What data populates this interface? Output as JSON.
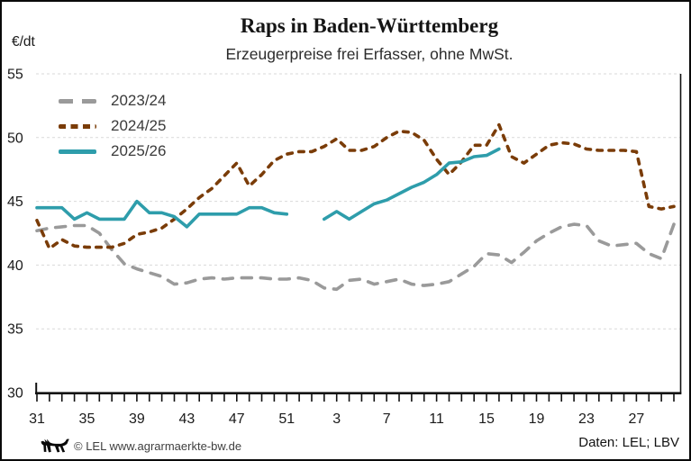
{
  "header": {
    "title": "Raps in Baden-Württemberg",
    "subtitle": "Erzeugerpreise frei Erfasser, ohne MwSt."
  },
  "footer": {
    "credit": "© LEL www.agrarmaerkte-bw.de",
    "source": "Daten: LEL; LBV",
    "logo": "baden-wuerttemberg-lion"
  },
  "chart_data": {
    "type": "line",
    "title": "Raps in Baden-Württemberg",
    "subtitle": "Erzeugerpreise frei Erfasser, ohne MwSt.",
    "ylabel": "€/dt",
    "xlabel": "",
    "ylim": [
      30,
      55
    ],
    "yticks": [
      30,
      35,
      40,
      45,
      50,
      55
    ],
    "grid": "horizontal-dashed",
    "legend_position": "top-left-inside",
    "x_unit": "Kalenderwoche",
    "x_weeks": [
      31,
      32,
      33,
      34,
      35,
      36,
      37,
      38,
      39,
      40,
      41,
      42,
      43,
      44,
      45,
      46,
      47,
      48,
      49,
      50,
      51,
      52,
      1,
      2,
      3,
      4,
      5,
      6,
      7,
      8,
      9,
      10,
      11,
      12,
      13,
      14,
      15,
      16,
      17,
      18,
      19,
      20,
      21,
      22,
      23,
      24,
      25,
      26,
      27,
      28,
      29,
      30
    ],
    "xtick_label_every": 4,
    "xtick_labels_shown": [
      31,
      35,
      39,
      43,
      47,
      51,
      3,
      7,
      11,
      15,
      19,
      23,
      27
    ],
    "series": [
      {
        "name": "2023/24",
        "color": "#9a9a9a",
        "dash": "long",
        "values": [
          42.7,
          42.9,
          43.0,
          43.1,
          43.1,
          42.5,
          41.2,
          40.1,
          39.7,
          39.4,
          39.1,
          38.5,
          38.6,
          38.9,
          39.0,
          38.9,
          39.0,
          39.0,
          39.0,
          38.9,
          38.9,
          39.0,
          38.8,
          38.2,
          38.1,
          38.8,
          38.9,
          38.5,
          38.7,
          38.9,
          38.5,
          38.4,
          38.5,
          38.7,
          39.3,
          39.9,
          40.9,
          40.8,
          40.2,
          41.0,
          41.9,
          42.5,
          43.0,
          43.2,
          43.1,
          41.9,
          41.5,
          41.6,
          41.7,
          40.9,
          40.5,
          43.2
        ]
      },
      {
        "name": "2024/25",
        "color": "#7a3c08",
        "dash": "short",
        "values": [
          43.5,
          41.3,
          42.0,
          41.5,
          41.4,
          41.4,
          41.4,
          41.7,
          42.4,
          42.6,
          42.9,
          43.6,
          44.4,
          45.3,
          46.0,
          47.0,
          48.0,
          46.2,
          47.1,
          48.2,
          48.7,
          48.9,
          48.9,
          49.3,
          49.9,
          49.0,
          49.0,
          49.3,
          50.0,
          50.5,
          50.4,
          49.8,
          48.3,
          47.1,
          48.1,
          49.4,
          49.4,
          51.0,
          48.5,
          48.0,
          48.7,
          49.4,
          49.6,
          49.5,
          49.1,
          49.0,
          49.0,
          49.0,
          48.9,
          44.6,
          44.4,
          44.6
        ]
      },
      {
        "name": "2025/26",
        "color": "#2e9dab",
        "dash": "solid",
        "values": [
          44.5,
          44.5,
          44.5,
          43.6,
          44.1,
          43.6,
          43.6,
          43.6,
          45.0,
          44.1,
          44.1,
          43.8,
          43.0,
          44.0,
          44.0,
          44.0,
          44.0,
          44.5,
          44.5,
          44.1,
          44.0,
          null,
          null,
          43.6,
          44.2,
          43.6,
          44.2,
          44.8,
          45.1,
          45.6,
          46.1,
          46.5,
          47.1,
          48.0,
          48.1,
          48.5,
          48.6,
          49.1,
          null,
          null,
          null,
          null,
          null,
          null,
          null,
          null,
          null,
          null,
          null,
          null,
          null,
          null
        ]
      }
    ]
  }
}
